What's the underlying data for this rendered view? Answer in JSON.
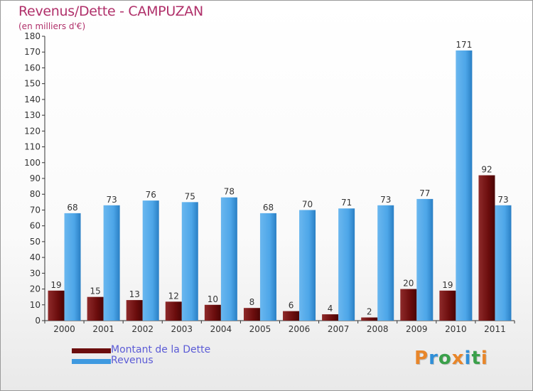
{
  "header": {
    "title": "Revenus/Dette - CAMPUZAN",
    "subtitle": "(en milliers d'€)"
  },
  "legend": {
    "items": [
      {
        "label": "Montant de la Dette",
        "color": "#6b0d0d"
      },
      {
        "label": "Revenus",
        "color": "#3f9ae0"
      }
    ]
  },
  "logo": {
    "text": "Proxiti",
    "colors": [
      "#e8862a",
      "#2f8fd8",
      "#3aa04a",
      "#e8862a",
      "#2f8fd8",
      "#3aa04a",
      "#e8862a"
    ]
  },
  "chart_data": {
    "type": "bar",
    "title": "Revenus/Dette - CAMPUZAN",
    "subtitle": "(en milliers d'€)",
    "categories": [
      "2000",
      "2001",
      "2002",
      "2003",
      "2004",
      "2005",
      "2006",
      "2007",
      "2008",
      "2009",
      "2010",
      "2011"
    ],
    "series": [
      {
        "name": "Montant de la Dette",
        "color": "#6b0d0d",
        "values": [
          19,
          15,
          13,
          12,
          10,
          8,
          6,
          4,
          2,
          20,
          19,
          92
        ]
      },
      {
        "name": "Revenus",
        "color": "#3f9ae0",
        "values": [
          68,
          73,
          76,
          75,
          78,
          68,
          70,
          71,
          73,
          77,
          171,
          73
        ]
      }
    ],
    "ylim": [
      0,
      180
    ],
    "yticks": [
      0,
      10,
      20,
      30,
      40,
      50,
      60,
      70,
      80,
      90,
      100,
      110,
      120,
      130,
      140,
      150,
      160,
      170,
      180
    ],
    "grid": false,
    "legend_position": "bottom-left"
  }
}
